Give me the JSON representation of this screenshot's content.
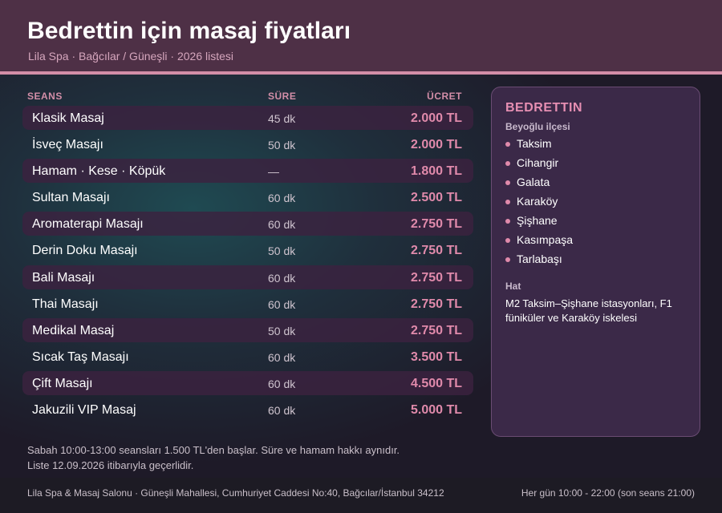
{
  "header": {
    "title": "Bedrettin için masaj fiyatları",
    "subtitle": "Lila Spa · Bağcılar / Güneşli · 2026 listesi"
  },
  "table": {
    "columns": {
      "seans": "SEANS",
      "sure": "SÜRE",
      "ucret": "ÜCRET"
    },
    "rows": [
      {
        "name": "Klasik Masaj",
        "duration": "45 dk",
        "price": "2.000 TL"
      },
      {
        "name": "İsveç Masajı",
        "duration": "50 dk",
        "price": "2.000 TL"
      },
      {
        "name": "Hamam · Kese · Köpük",
        "duration": "—",
        "price": "1.800 TL"
      },
      {
        "name": "Sultan Masajı",
        "duration": "60 dk",
        "price": "2.500 TL"
      },
      {
        "name": "Aromaterapi Masajı",
        "duration": "60 dk",
        "price": "2.750 TL"
      },
      {
        "name": "Derin Doku Masajı",
        "duration": "50 dk",
        "price": "2.750 TL"
      },
      {
        "name": "Bali Masajı",
        "duration": "60 dk",
        "price": "2.750 TL"
      },
      {
        "name": "Thai Masajı",
        "duration": "60 dk",
        "price": "2.750 TL"
      },
      {
        "name": "Medikal Masaj",
        "duration": "50 dk",
        "price": "2.750 TL"
      },
      {
        "name": "Sıcak Taş Masajı",
        "duration": "60 dk",
        "price": "3.500 TL"
      },
      {
        "name": "Çift Masajı",
        "duration": "60 dk",
        "price": "4.500 TL"
      },
      {
        "name": "Jakuzili VIP Masaj",
        "duration": "60 dk",
        "price": "5.000 TL"
      }
    ]
  },
  "card": {
    "title": "BEDRETTIN",
    "subtitle": "Beyoğlu ilçesi",
    "neighborhoods": [
      "Taksim",
      "Cihangir",
      "Galata",
      "Karaköy",
      "Şişhane",
      "Kasımpaşa",
      "Tarlabaşı"
    ],
    "hat_label": "Hat",
    "transit": "M2 Taksim–Şişhane istasyonları, F1 füniküler ve Karaköy iskelesi"
  },
  "notes": {
    "line1": "Sabah 10:00-13:00 seansları 1.500 TL'den başlar. Süre ve hamam hakkı aynıdır.",
    "line2": "Liste 12.09.2026 itibarıyla geçerlidir."
  },
  "footer": {
    "address": "Lila Spa & Masaj Salonu · Güneşli Mahallesi, Cumhuriyet Caddesi No:40, Bağcılar/İstanbul 34212",
    "hours": "Her gün 10:00 - 22:00 (son seans 21:00)"
  },
  "colors": {
    "header_bg": "#4e3046",
    "accent": "#d38ea8",
    "price": "#e08aab",
    "card_bg": "#3b2948"
  }
}
